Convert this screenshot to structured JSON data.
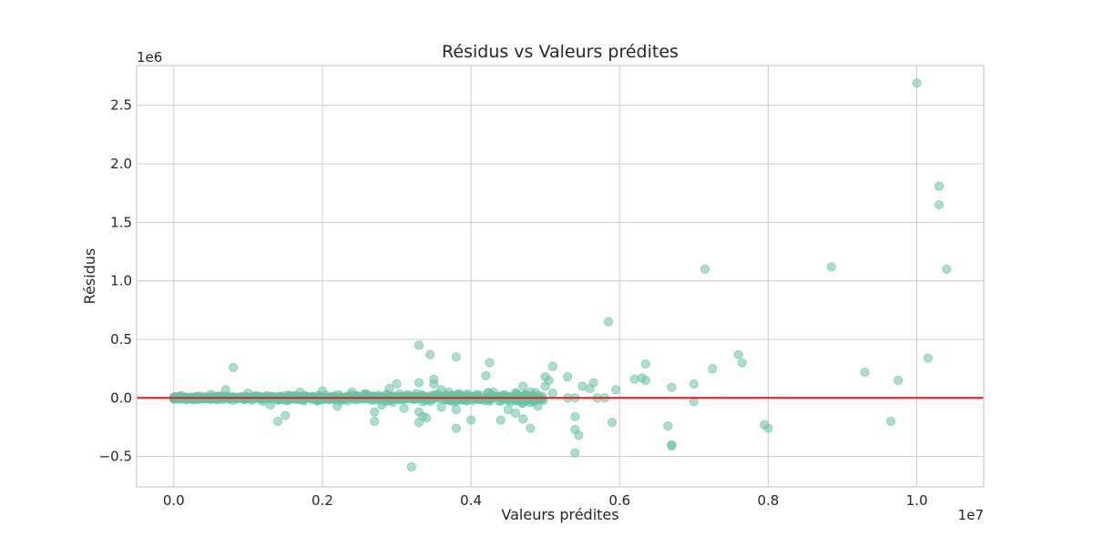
{
  "chart_data": {
    "type": "scatter",
    "title": "Résidus vs Valeurs prédites",
    "xlabel": "Valeurs prédites",
    "ylabel": "Résidus",
    "x_offset_label": "1e7",
    "y_offset_label": "1e6",
    "xlim": [
      -0.05,
      1.09
    ],
    "ylim": [
      -0.76,
      2.84
    ],
    "x_ticks": [
      0.0,
      0.2,
      0.4,
      0.6,
      0.8,
      1.0
    ],
    "x_tick_labels": [
      "0.0",
      "0.2",
      "0.4",
      "0.6",
      "0.8",
      "1.0"
    ],
    "y_ticks": [
      -0.5,
      0.0,
      0.5,
      1.0,
      1.5,
      2.0,
      2.5
    ],
    "y_tick_labels": [
      "−0.5",
      "0.0",
      "0.5",
      "1.0",
      "1.5",
      "2.0",
      "2.5"
    ],
    "grid": true,
    "point_color": "#66c2a5",
    "reference_line": {
      "y": 0,
      "color": "#e31a1c"
    },
    "cluster": {
      "x_range": [
        0.0,
        0.5
      ],
      "y_spread_start": 0.015,
      "y_spread_end": 0.06,
      "count": 700
    },
    "points": [
      [
        0.0,
        0.0
      ],
      [
        0.01,
        0.02
      ],
      [
        0.03,
        -0.01
      ],
      [
        0.05,
        0.03
      ],
      [
        0.08,
        -0.02
      ],
      [
        0.08,
        0.26
      ],
      [
        0.07,
        0.07
      ],
      [
        0.1,
        0.04
      ],
      [
        0.12,
        -0.03
      ],
      [
        0.14,
        -0.2
      ],
      [
        0.15,
        -0.15
      ],
      [
        0.13,
        -0.06
      ],
      [
        0.17,
        0.05
      ],
      [
        0.2,
        0.06
      ],
      [
        0.22,
        -0.07
      ],
      [
        0.24,
        0.05
      ],
      [
        0.26,
        0.03
      ],
      [
        0.27,
        -0.12
      ],
      [
        0.27,
        -0.2
      ],
      [
        0.28,
        -0.06
      ],
      [
        0.29,
        0.08
      ],
      [
        0.3,
        0.12
      ],
      [
        0.31,
        -0.09
      ],
      [
        0.32,
        -0.59
      ],
      [
        0.33,
        0.45
      ],
      [
        0.33,
        0.13
      ],
      [
        0.33,
        -0.12
      ],
      [
        0.33,
        -0.21
      ],
      [
        0.335,
        -0.16
      ],
      [
        0.34,
        -0.17
      ],
      [
        0.345,
        0.37
      ],
      [
        0.35,
        0.16
      ],
      [
        0.35,
        0.12
      ],
      [
        0.36,
        0.07
      ],
      [
        0.36,
        -0.08
      ],
      [
        0.37,
        0.05
      ],
      [
        0.38,
        0.35
      ],
      [
        0.38,
        -0.1
      ],
      [
        0.38,
        -0.26
      ],
      [
        0.39,
        0.02
      ],
      [
        0.4,
        -0.19
      ],
      [
        0.42,
        0.19
      ],
      [
        0.425,
        0.3
      ],
      [
        0.43,
        0.05
      ],
      [
        0.44,
        -0.19
      ],
      [
        0.45,
        -0.1
      ],
      [
        0.46,
        -0.13
      ],
      [
        0.47,
        0.1
      ],
      [
        0.47,
        -0.18
      ],
      [
        0.48,
        0.05
      ],
      [
        0.48,
        -0.26
      ],
      [
        0.49,
        -0.07
      ],
      [
        0.5,
        0.18
      ],
      [
        0.5,
        0.1
      ],
      [
        0.505,
        0.15
      ],
      [
        0.51,
        0.27
      ],
      [
        0.51,
        0.04
      ],
      [
        0.53,
        0.0
      ],
      [
        0.53,
        0.18
      ],
      [
        0.54,
        -0.16
      ],
      [
        0.54,
        -0.27
      ],
      [
        0.545,
        -0.32
      ],
      [
        0.54,
        -0.47
      ],
      [
        0.54,
        0.0
      ],
      [
        0.55,
        0.1
      ],
      [
        0.56,
        0.08
      ],
      [
        0.565,
        0.13
      ],
      [
        0.57,
        0.0
      ],
      [
        0.58,
        0.0
      ],
      [
        0.585,
        0.65
      ],
      [
        0.59,
        -0.21
      ],
      [
        0.595,
        0.07
      ],
      [
        0.62,
        0.16
      ],
      [
        0.63,
        0.17
      ],
      [
        0.635,
        0.15
      ],
      [
        0.635,
        0.29
      ],
      [
        0.665,
        -0.24
      ],
      [
        0.67,
        0.09
      ],
      [
        0.67,
        -0.4
      ],
      [
        0.67,
        -0.41
      ],
      [
        0.7,
        0.12
      ],
      [
        0.7,
        -0.03
      ],
      [
        0.715,
        1.1
      ],
      [
        0.725,
        0.25
      ],
      [
        0.76,
        0.37
      ],
      [
        0.765,
        0.3
      ],
      [
        0.795,
        -0.23
      ],
      [
        0.8,
        -0.26
      ],
      [
        0.885,
        1.12
      ],
      [
        0.93,
        0.22
      ],
      [
        0.965,
        -0.2
      ],
      [
        0.975,
        0.15
      ],
      [
        1.0,
        2.69
      ],
      [
        1.015,
        0.34
      ],
      [
        1.03,
        1.81
      ],
      [
        1.03,
        1.65
      ],
      [
        1.04,
        1.1
      ]
    ]
  }
}
